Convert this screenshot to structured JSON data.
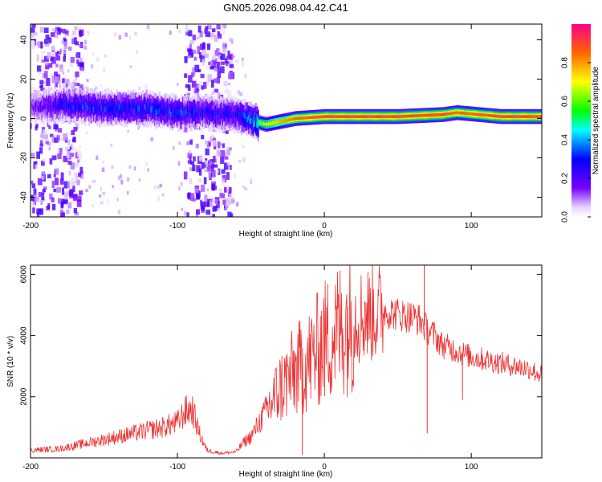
{
  "title": "GN05.2026.098.04.42.C41",
  "colors": {
    "snr_line": "#ee3333",
    "frame": "#000000",
    "background": "#ffffff"
  },
  "chart_data": [
    {
      "type": "heatmap",
      "id": "spectrogram",
      "xlabel": "Height of straight line (km)",
      "ylabel": "Frequency (Hz)",
      "xlim": [
        -200,
        148
      ],
      "ylim": [
        -50,
        48
      ],
      "xticks": [
        -200,
        -100,
        0,
        100
      ],
      "yticks": [
        -40,
        -20,
        0,
        20,
        40
      ],
      "colorbar": {
        "label": "Normalized spectral amplitude",
        "range": [
          0,
          1
        ],
        "ticks": [
          0.0,
          0.2,
          0.4,
          0.6,
          0.8
        ],
        "tick_labels": [
          "0.0",
          "0.2",
          "0.4",
          "0.6",
          "0.8"
        ]
      },
      "ridge": [
        {
          "x": -200,
          "freq": 6,
          "amp": 0.15
        },
        {
          "x": -180,
          "freq": 7,
          "amp": 0.3
        },
        {
          "x": -160,
          "freq": 6,
          "amp": 0.35
        },
        {
          "x": -140,
          "freq": 5,
          "amp": 0.35
        },
        {
          "x": -120,
          "freq": 5,
          "amp": 0.35
        },
        {
          "x": -100,
          "freq": 3,
          "amp": 0.35
        },
        {
          "x": -80,
          "freq": 3,
          "amp": 0.3
        },
        {
          "x": -60,
          "freq": 2,
          "amp": 0.3
        },
        {
          "x": -50,
          "freq": -1,
          "amp": 0.45
        },
        {
          "x": -40,
          "freq": -3,
          "amp": 0.7
        },
        {
          "x": -20,
          "freq": 0,
          "amp": 0.85
        },
        {
          "x": 0,
          "freq": 1,
          "amp": 0.9
        },
        {
          "x": 20,
          "freq": 1,
          "amp": 0.9
        },
        {
          "x": 50,
          "freq": 1,
          "amp": 0.9
        },
        {
          "x": 80,
          "freq": 2,
          "amp": 0.9
        },
        {
          "x": 90,
          "freq": 3,
          "amp": 0.85
        },
        {
          "x": 120,
          "freq": 1,
          "amp": 0.9
        },
        {
          "x": 148,
          "freq": 1,
          "amp": 0.9
        }
      ],
      "noise_bands": [
        {
          "x_start": -200,
          "x_end": -165,
          "amp": 0.3
        },
        {
          "x_start": -95,
          "x_end": -63,
          "amp": 0.3
        }
      ]
    },
    {
      "type": "line",
      "id": "snr",
      "xlabel": "Height of straight line (km)",
      "ylabel": "SNR (10 * v/v)",
      "xlim": [
        -200,
        148
      ],
      "ylim": [
        0,
        6300
      ],
      "xticks": [
        -200,
        -100,
        0,
        100
      ],
      "yticks": [
        2000,
        4000,
        6000
      ],
      "series": [
        {
          "name": "SNR",
          "x": [
            -200,
            -180,
            -160,
            -140,
            -120,
            -110,
            -100,
            -95,
            -90,
            -85,
            -80,
            -70,
            -60,
            -55,
            -50,
            -40,
            -30,
            -20,
            -10,
            0,
            10,
            20,
            30,
            40,
            50,
            60,
            65,
            70,
            75,
            80,
            90,
            100,
            110,
            120,
            130,
            140,
            148
          ],
          "y": [
            250,
            300,
            500,
            700,
            900,
            1000,
            1150,
            1500,
            1600,
            800,
            250,
            150,
            200,
            500,
            700,
            1500,
            2300,
            2800,
            3200,
            3800,
            4200,
            4600,
            4700,
            4800,
            4700,
            4600,
            4500,
            4200,
            4000,
            3700,
            3500,
            3300,
            3200,
            3100,
            3000,
            2900,
            2700
          ]
        }
      ],
      "annotations": [
        {
          "x": 68,
          "y": 6300,
          "note": "spike"
        },
        {
          "x": 70,
          "y": 800,
          "note": "dip"
        },
        {
          "x": 94,
          "y": 1900,
          "note": "dip"
        },
        {
          "x": -15,
          "y": 100,
          "note": "dip"
        }
      ]
    }
  ]
}
